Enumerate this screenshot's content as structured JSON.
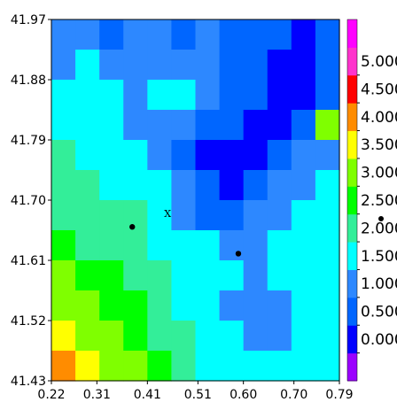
{
  "chart_data": {
    "type": "heatmap",
    "title": "",
    "xlabel": "",
    "ylabel": "",
    "xlim": [
      0.22,
      0.79
    ],
    "ylim": [
      41.43,
      41.97
    ],
    "x_ticks": [
      "0.22",
      "0.31",
      "0.41",
      "0.51",
      "0.60",
      "0.70",
      "0.79"
    ],
    "y_ticks": [
      "41.97",
      "41.88",
      "41.79",
      "41.70",
      "41.61",
      "41.52",
      "41.43"
    ],
    "colorbar": {
      "labels": [
        "0.000",
        "0.500",
        "1.000",
        "1.500",
        "2.000",
        "2.500",
        "3.000",
        "3.500",
        "4.000",
        "4.500",
        "5.000"
      ],
      "levels": [
        -0.5,
        0,
        0.5,
        1.0,
        1.5,
        2.0,
        2.5,
        3.0,
        3.5,
        4.0,
        4.5,
        5.0,
        5.5
      ],
      "colors": [
        "#9b00ff",
        "#0000ff",
        "#0066ff",
        "#2d88ff",
        "#00ffff",
        "#33ee99",
        "#00ff00",
        "#7fff00",
        "#ffff00",
        "#ff8c00",
        "#ff0000",
        "#ff33cc",
        "#ff00ff"
      ]
    },
    "points": [
      {
        "x": 0.38,
        "y": 41.66
      },
      {
        "x": 0.59,
        "y": 41.62
      }
    ],
    "marker": {
      "x": 0.45,
      "y": 41.68,
      "label": "X"
    },
    "grid": [
      [
        1.0,
        1.2,
        0.8,
        1.3,
        1.1,
        0.9,
        1.0,
        0.7,
        0.8,
        0.5,
        0.3,
        0.5
      ],
      [
        1.3,
        1.5,
        1.4,
        1.2,
        1.3,
        1.4,
        1.1,
        0.8,
        0.7,
        0.4,
        0.3,
        0.6
      ],
      [
        1.6,
        1.5,
        1.8,
        1.4,
        1.6,
        1.7,
        1.4,
        0.9,
        0.6,
        0.3,
        0.4,
        0.9
      ],
      [
        1.8,
        1.6,
        1.5,
        1.4,
        1.2,
        1.1,
        0.9,
        0.5,
        0.3,
        0.2,
        0.8,
        3.2
      ],
      [
        2.0,
        1.8,
        1.7,
        1.6,
        1.3,
        0.7,
        0.3,
        0.2,
        0.3,
        0.6,
        1.0,
        1.2
      ],
      [
        2.2,
        2.1,
        1.9,
        1.8,
        1.5,
        1.1,
        0.6,
        0.2,
        0.6,
        1.0,
        1.4,
        1.6
      ],
      [
        2.4,
        2.2,
        2.1,
        2.0,
        1.7,
        1.4,
        0.9,
        0.5,
        1.0,
        1.3,
        1.6,
        1.8
      ],
      [
        2.6,
        2.4,
        2.3,
        2.0,
        1.9,
        1.6,
        1.5,
        1.2,
        1.4,
        1.6,
        1.7,
        1.8
      ],
      [
        3.0,
        2.7,
        2.5,
        2.3,
        2.0,
        1.8,
        1.6,
        1.5,
        1.4,
        1.5,
        1.6,
        1.7
      ],
      [
        3.3,
        3.0,
        2.8,
        2.5,
        2.2,
        1.9,
        1.6,
        1.4,
        1.3,
        1.4,
        1.5,
        1.6
      ],
      [
        3.6,
        3.3,
        3.0,
        2.6,
        2.3,
        2.0,
        1.7,
        1.5,
        1.3,
        1.4,
        1.5,
        1.6
      ],
      [
        4.2,
        3.8,
        3.4,
        3.0,
        2.5,
        2.1,
        1.8,
        1.6,
        1.5,
        1.6,
        1.7,
        1.8
      ]
    ]
  }
}
